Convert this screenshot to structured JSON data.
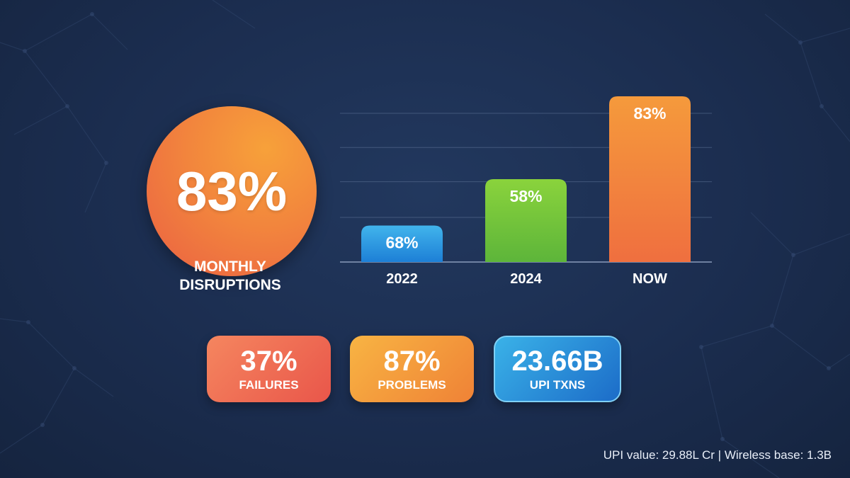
{
  "headline": {
    "value": "83%",
    "caption_line1": "MONTHLY",
    "caption_line2": "DISRUPTIONS"
  },
  "chart_data": {
    "type": "bar",
    "categories": [
      "2022",
      "2024",
      "NOW"
    ],
    "values": [
      68,
      58,
      83
    ],
    "value_labels": [
      "68%",
      "58%",
      "83%"
    ],
    "colors": [
      [
        "#41b4ec",
        "#1d7fd6"
      ],
      [
        "#8ad33c",
        "#5db53a"
      ],
      [
        "#f59a3c",
        "#ef6f3f"
      ]
    ],
    "grid": true,
    "title": "",
    "xlabel": "",
    "ylabel": ""
  },
  "stats": [
    {
      "value": "37%",
      "label": "FAILURES"
    },
    {
      "value": "87%",
      "label": "PROBLEMS"
    },
    {
      "value": "23.66B",
      "label": "UPI TXNS"
    }
  ],
  "footer": "UPI value: 29.88L Cr | Wireless base: 1.3B",
  "colors": {
    "background": "#1b2d4f",
    "circle": "#f2853d",
    "failures": "#ee6a50",
    "problems": "#f39a3c",
    "upi": "#2b8fd8"
  }
}
